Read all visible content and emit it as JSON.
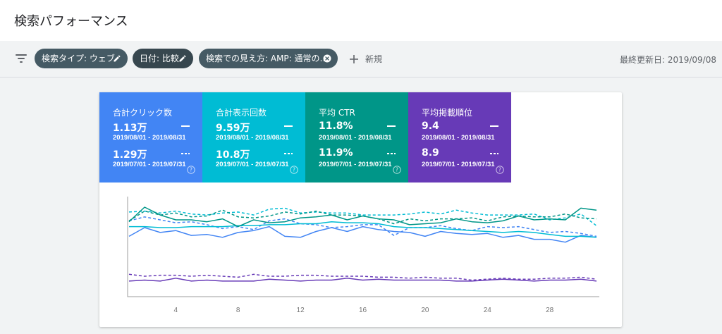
{
  "header": {
    "title": "検索パフォーマンス"
  },
  "filters": {
    "chips": [
      {
        "label": "検索タイプ: ウェブ",
        "icon": "pencil-icon"
      },
      {
        "label": "日付: 比較",
        "icon": "pencil-icon"
      },
      {
        "label": "検索での見え方: AMP: 通常の…",
        "icon": "close-circle-icon"
      }
    ],
    "new_label": "新規",
    "last_updated": "最終更新日: 2019/09/08"
  },
  "metrics": [
    {
      "title": "合計クリック数",
      "value_current": "1.13万",
      "range_current": "2019/08/01 - 2019/08/31",
      "value_previous": "1.29万",
      "range_previous": "2019/07/01 - 2019/07/31",
      "color": "#4285f4"
    },
    {
      "title": "合計表示回数",
      "value_current": "9.59万",
      "range_current": "2019/08/01 - 2019/08/31",
      "value_previous": "10.8万",
      "range_previous": "2019/07/01 - 2019/07/31",
      "color": "#00bcd4"
    },
    {
      "title": "平均 CTR",
      "value_current": "11.8%",
      "range_current": "2019/08/01 - 2019/08/31",
      "value_previous": "11.9%",
      "range_previous": "2019/07/01 - 2019/07/31",
      "color": "#009688"
    },
    {
      "title": "平均掲載順位",
      "value_current": "9.4",
      "range_current": "2019/08/01 - 2019/08/31",
      "value_previous": "8.9",
      "range_previous": "2019/07/01 - 2019/07/31",
      "color": "#673ab7"
    }
  ],
  "chart_data": {
    "type": "line",
    "x": [
      1,
      2,
      3,
      4,
      5,
      6,
      7,
      8,
      9,
      10,
      11,
      12,
      13,
      14,
      15,
      16,
      17,
      18,
      19,
      20,
      21,
      22,
      23,
      24,
      25,
      26,
      27,
      28,
      29,
      30,
      31
    ],
    "xticks": [
      4,
      8,
      12,
      16,
      20,
      24,
      28
    ],
    "xlim": [
      1,
      31
    ],
    "ylim": [
      0,
      100
    ],
    "grid": false,
    "series": [
      {
        "color": "#4285f4",
        "dashed": false,
        "values": [
          62,
          71,
          66,
          68,
          63,
          64,
          61,
          66,
          68,
          72,
          62,
          61,
          67,
          71,
          67,
          72,
          69,
          67,
          66,
          62,
          67,
          65,
          64,
          65,
          61,
          63,
          59,
          59,
          56,
          63,
          61
        ]
      },
      {
        "color": "#4285f4",
        "dashed": true,
        "values": [
          78,
          82,
          79,
          76,
          77,
          74,
          70,
          72,
          69,
          78,
          80,
          75,
          74,
          71,
          72,
          74,
          74,
          63,
          71,
          71,
          73,
          70,
          68,
          72,
          71,
          72,
          69,
          66,
          67,
          65,
          62
        ]
      },
      {
        "color": "#00bcd4",
        "dashed": false,
        "values": [
          72,
          72,
          71,
          71,
          72,
          72,
          72,
          73,
          73,
          74,
          74,
          75,
          75,
          77,
          76,
          76,
          75,
          72,
          71,
          71,
          70,
          69,
          68,
          67,
          66,
          67,
          66,
          64,
          62,
          62,
          61
        ]
      },
      {
        "color": "#00bcd4",
        "dashed": true,
        "values": [
          87,
          88,
          86,
          88,
          85,
          84,
          86,
          87,
          84,
          90,
          91,
          86,
          87,
          86,
          86,
          84,
          84,
          84,
          85,
          87,
          85,
          89,
          86,
          84,
          84,
          84,
          85,
          79,
          81,
          85,
          73
        ]
      },
      {
        "color": "#009688",
        "dashed": false,
        "values": [
          77,
          92,
          84,
          79,
          79,
          77,
          80,
          72,
          79,
          76,
          77,
          81,
          82,
          84,
          79,
          83,
          80,
          79,
          74,
          75,
          76,
          80,
          77,
          76,
          78,
          83,
          79,
          80,
          79,
          91,
          89
        ]
      },
      {
        "color": "#009688",
        "dashed": true,
        "values": [
          78,
          88,
          84,
          86,
          82,
          83,
          89,
          82,
          81,
          83,
          87,
          85,
          88,
          84,
          84,
          83,
          80,
          75,
          80,
          78,
          80,
          80,
          81,
          78,
          82,
          83,
          82,
          82,
          85,
          81,
          80
        ]
      },
      {
        "color": "#673ab7",
        "dashed": false,
        "values": [
          16,
          17,
          16,
          19,
          16,
          17,
          16,
          16,
          16,
          18,
          17,
          16,
          17,
          17,
          19,
          17,
          18,
          17,
          17,
          17,
          17,
          16,
          16,
          17,
          18,
          17,
          16,
          17,
          17,
          18,
          16
        ]
      },
      {
        "color": "#673ab7",
        "dashed": true,
        "values": [
          23,
          21,
          22,
          22,
          21,
          22,
          21,
          20,
          23,
          21,
          21,
          22,
          22,
          21,
          21,
          21,
          20,
          20,
          19,
          20,
          19,
          19,
          17,
          18,
          19,
          18,
          18,
          19,
          19,
          20,
          18
        ]
      }
    ]
  }
}
